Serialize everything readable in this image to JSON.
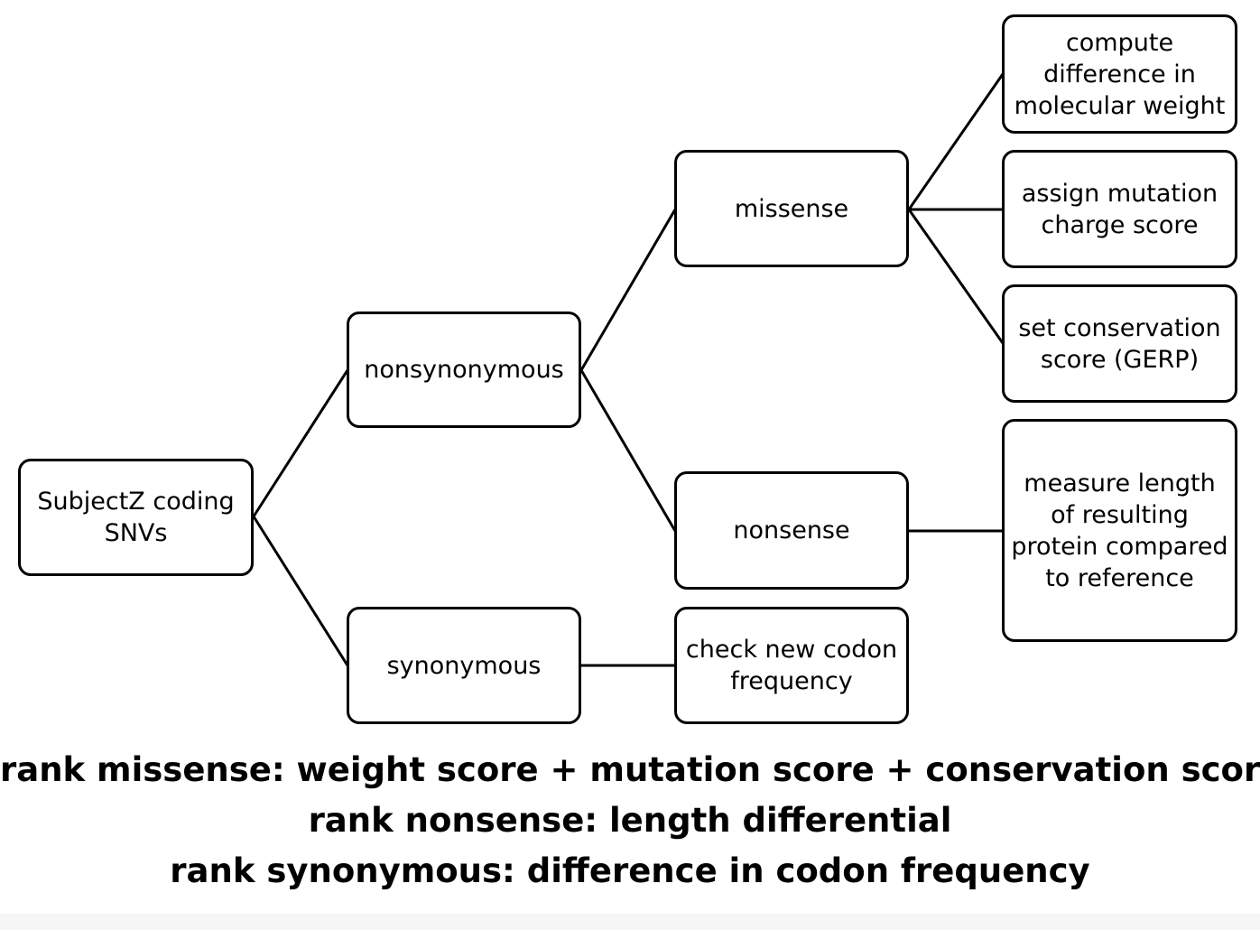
{
  "nodes": {
    "root": "SubjectZ coding SNVs",
    "nonsynonymous": "nonsynonymous",
    "synonymous": "synonymous",
    "missense": "missense",
    "nonsense": "nonsense",
    "codon_check": "check new codon frequency",
    "molecular_weight": "compute difference in molecular weight",
    "mutation_charge": "assign mutation charge score",
    "conservation": "set conservation score (GERP)",
    "protein_length": "measure length of resulting protein compared to reference"
  },
  "captions": {
    "missense_rank": "rank missense: weight score + mutation score + conservation score",
    "nonsense_rank": "rank nonsense: length differential",
    "synonymous_rank": "rank synonymous: difference in codon frequency"
  }
}
